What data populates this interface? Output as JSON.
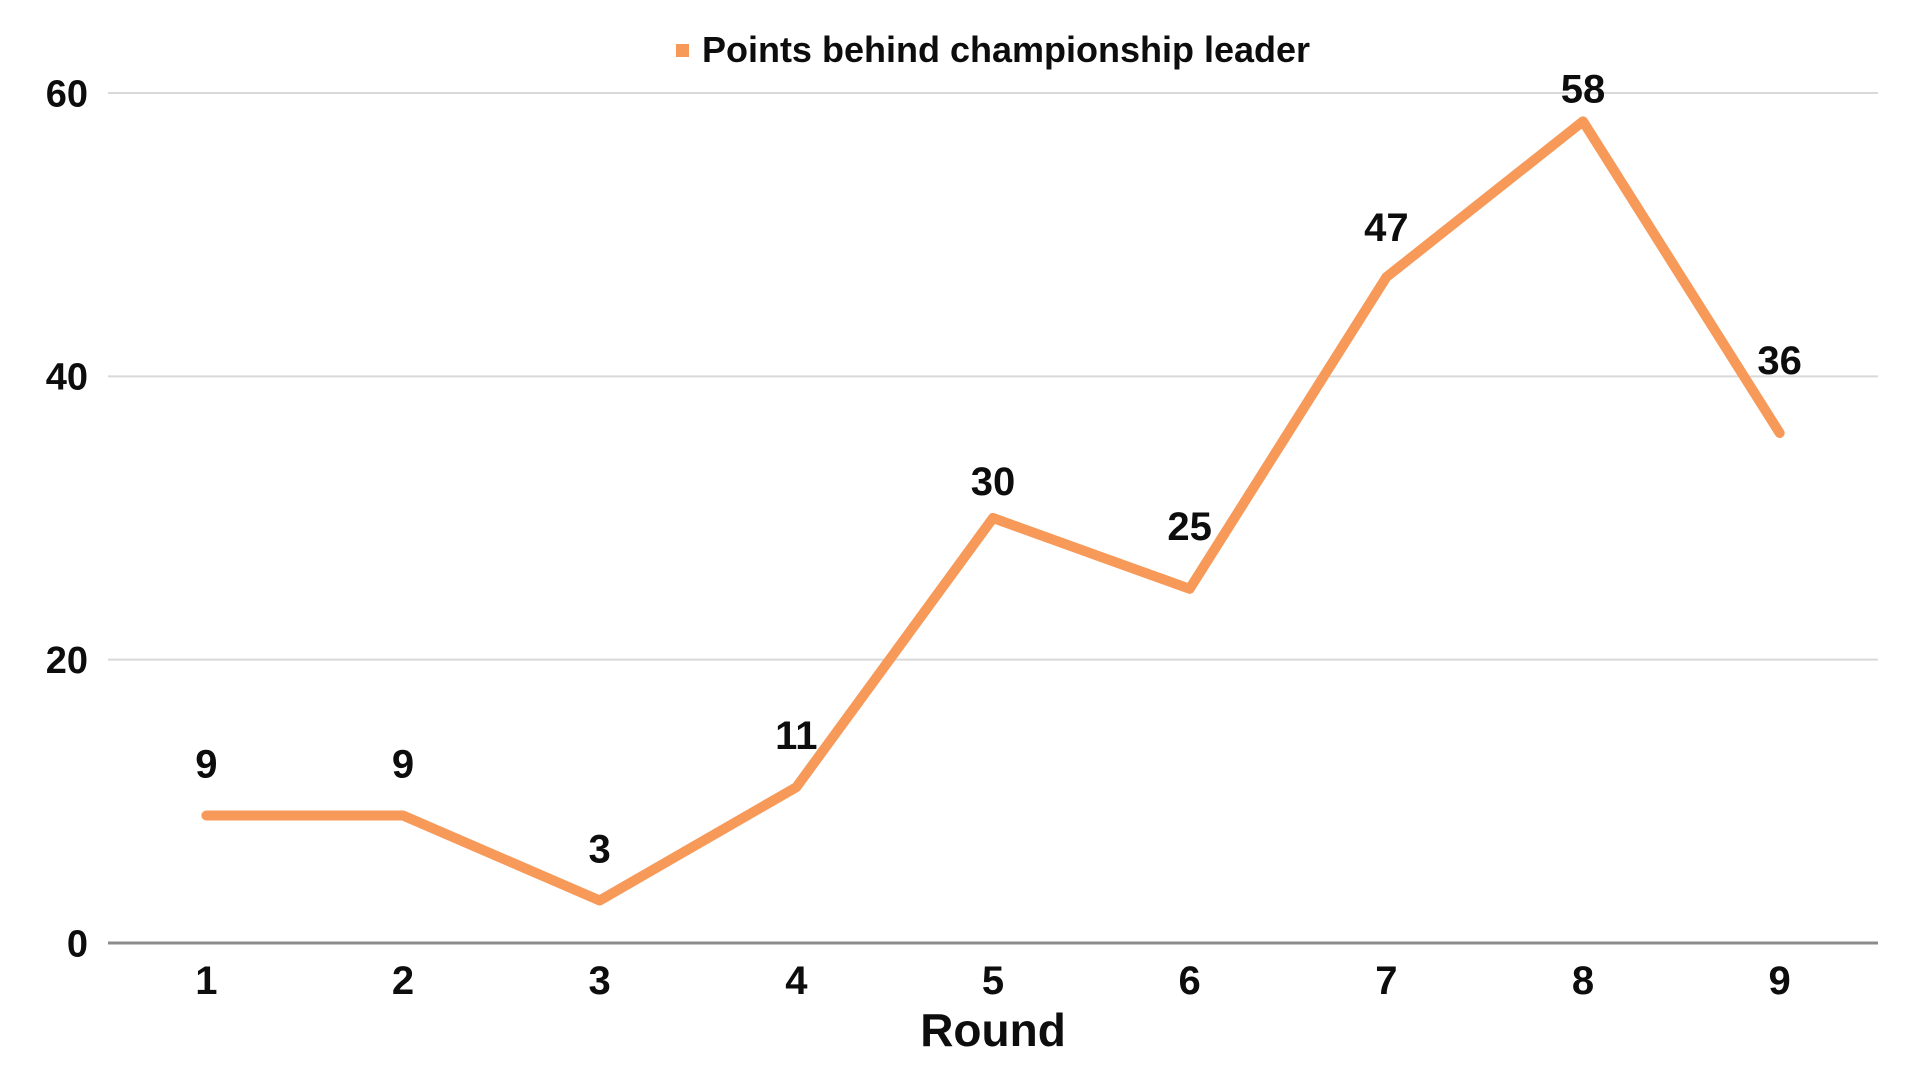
{
  "chart_data": {
    "type": "line",
    "title": "",
    "xlabel": "Round",
    "ylabel": "",
    "categories": [
      "1",
      "2",
      "3",
      "4",
      "5",
      "6",
      "7",
      "8",
      "9"
    ],
    "series": [
      {
        "name": "Points behind championship leader",
        "values": [
          9,
          9,
          3,
          11,
          30,
          25,
          47,
          58,
          36
        ],
        "color": "#F79A59"
      }
    ],
    "data_labels": [
      "9",
      "9",
      "3",
      "11",
      "30",
      "25",
      "47",
      "58",
      "36"
    ],
    "ylim": [
      0,
      60
    ],
    "yticks": [
      0,
      20,
      40,
      60
    ],
    "grid": "horizontal",
    "legend_position": "top-center"
  },
  "legend": {
    "label": "Points behind championship leader"
  },
  "colors": {
    "background": "#FFFFFF",
    "line": "#F79A59",
    "legend_marker": "#F79A59",
    "gridline": "#D9D9D9",
    "axis_line": "#8C8C8C",
    "text": "#0D0D0D"
  }
}
